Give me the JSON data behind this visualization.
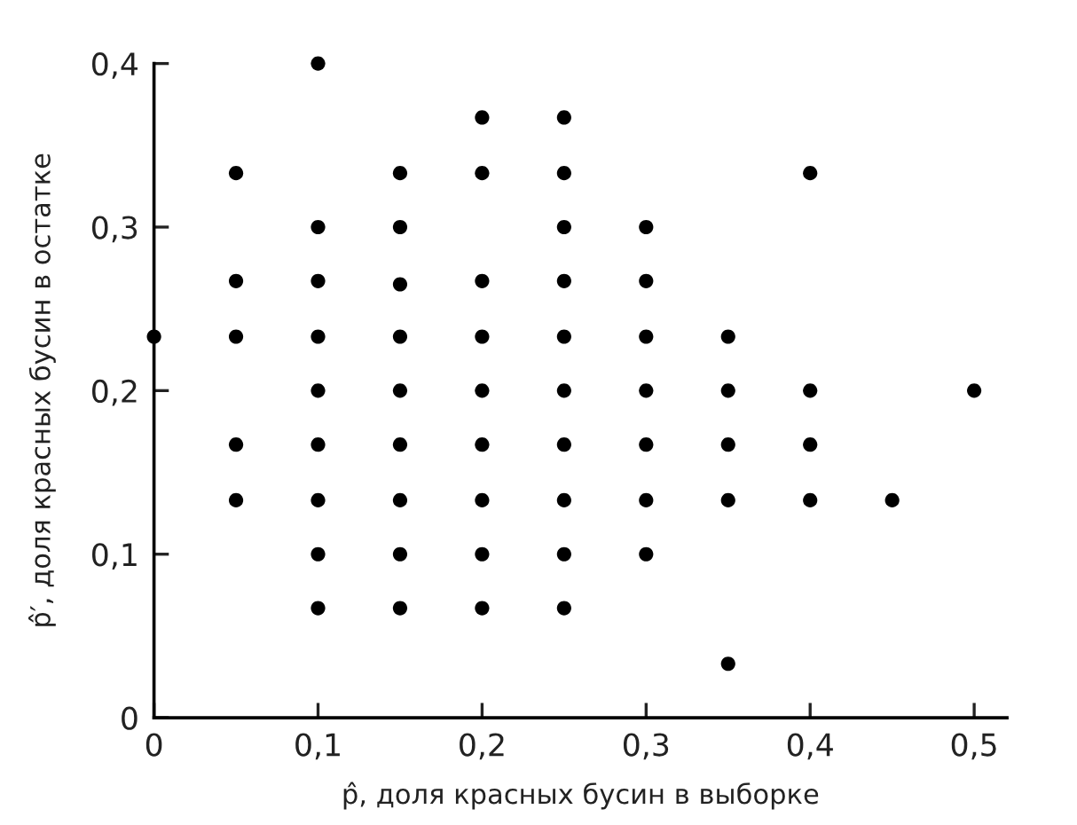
{
  "chart_data": {
    "type": "scatter",
    "xlabel": "p̂, доля красных бусин в выборке",
    "ylabel": "p̂′, доля красных бусин в остатке",
    "x": [
      0,
      0.05,
      0.05,
      0.05,
      0.05,
      0.05,
      0.1,
      0.1,
      0.1,
      0.1,
      0.1,
      0.1,
      0.1,
      0.1,
      0.1,
      0.15,
      0.15,
      0.15,
      0.15,
      0.15,
      0.15,
      0.15,
      0.15,
      0.15,
      0.2,
      0.2,
      0.2,
      0.2,
      0.2,
      0.2,
      0.2,
      0.2,
      0.2,
      0.25,
      0.25,
      0.25,
      0.25,
      0.25,
      0.25,
      0.25,
      0.25,
      0.25,
      0.25,
      0.3,
      0.3,
      0.3,
      0.3,
      0.3,
      0.3,
      0.3,
      0.35,
      0.35,
      0.35,
      0.35,
      0.35,
      0.4,
      0.4,
      0.4,
      0.4,
      0.45,
      0.5
    ],
    "values": [
      0.233,
      0.333,
      0.267,
      0.233,
      0.167,
      0.133,
      0.4,
      0.3,
      0.267,
      0.233,
      0.2,
      0.167,
      0.133,
      0.1,
      0.067,
      0.333,
      0.3,
      0.265,
      0.233,
      0.2,
      0.167,
      0.133,
      0.1,
      0.067,
      0.367,
      0.333,
      0.267,
      0.233,
      0.2,
      0.167,
      0.133,
      0.1,
      0.067,
      0.367,
      0.333,
      0.3,
      0.267,
      0.233,
      0.2,
      0.167,
      0.133,
      0.1,
      0.067,
      0.3,
      0.267,
      0.233,
      0.2,
      0.167,
      0.133,
      0.1,
      0.233,
      0.2,
      0.167,
      0.133,
      0.033,
      0.333,
      0.2,
      0.167,
      0.133,
      0.133,
      0.2
    ],
    "color": "#000000",
    "marker": "circle",
    "xlim": [
      0,
      0.52
    ],
    "ylim": [
      0,
      0.4
    ],
    "xticks": [
      0,
      {
        "value": 0.1,
        "label": "0,1"
      },
      {
        "value": 0.2,
        "label": "0,2"
      },
      {
        "value": 0.3,
        "label": "0,3"
      },
      {
        "value": 0.4,
        "label": "0,4"
      },
      {
        "value": 0.5,
        "label": "0,5"
      }
    ],
    "yticks": [
      0,
      {
        "value": 0.1,
        "label": "0,1"
      },
      {
        "value": 0.2,
        "label": "0,2"
      },
      {
        "value": 0.3,
        "label": "0,3"
      },
      {
        "value": 0.4,
        "label": "0,4"
      }
    ]
  }
}
